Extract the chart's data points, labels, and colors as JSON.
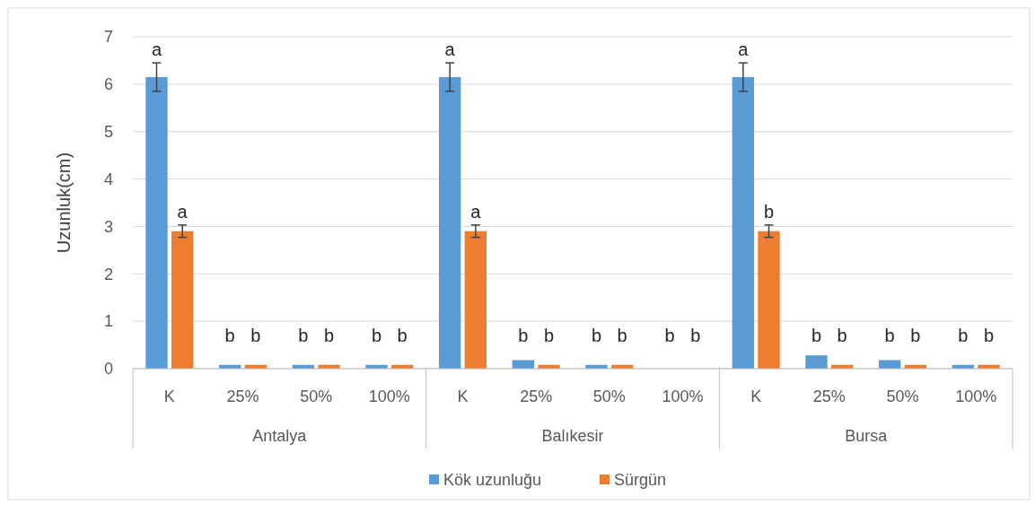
{
  "chart_data": {
    "type": "bar",
    "ylabel": "Uzunluk(cm)",
    "categories": [
      "K",
      "25%",
      "50%",
      "100%",
      "K",
      "25%",
      "50%",
      "100%",
      "K",
      "25%",
      "50%",
      "100%"
    ],
    "annotations": [
      "Antalya",
      "Balıkesir",
      "Bursa"
    ],
    "series": [
      {
        "name": "Kök uzunluğu",
        "color": "#5b9bd5",
        "values": [
          6.15,
          0.08,
          0.08,
          0.08,
          6.15,
          0.18,
          0.08,
          0,
          6.15,
          0.28,
          0.18,
          0.08
        ],
        "errors": [
          0.3,
          null,
          null,
          null,
          0.3,
          null,
          null,
          null,
          0.3,
          null,
          null,
          null
        ],
        "value_labels": [
          "a",
          "b",
          "b",
          "b",
          "a",
          "b",
          "b",
          "b",
          "a",
          "b",
          "b",
          "b"
        ]
      },
      {
        "name": "Sürgün",
        "color": "#ed7d31",
        "values": [
          2.9,
          0.08,
          0.08,
          0.08,
          2.9,
          0.08,
          0.08,
          0,
          2.9,
          0.08,
          0.08,
          0.08
        ],
        "errors": [
          0.13,
          null,
          null,
          null,
          0.13,
          null,
          null,
          null,
          0.13,
          null,
          null,
          null
        ],
        "value_labels": [
          "a",
          "b",
          "b",
          "b",
          "a",
          "b",
          "b",
          "b",
          "b",
          "b",
          "b",
          "b"
        ]
      }
    ],
    "ylim": [
      0,
      7
    ],
    "yticks": [
      0,
      1,
      2,
      3,
      4,
      5,
      6,
      7
    ],
    "grid": "y",
    "legend": "bottom"
  }
}
